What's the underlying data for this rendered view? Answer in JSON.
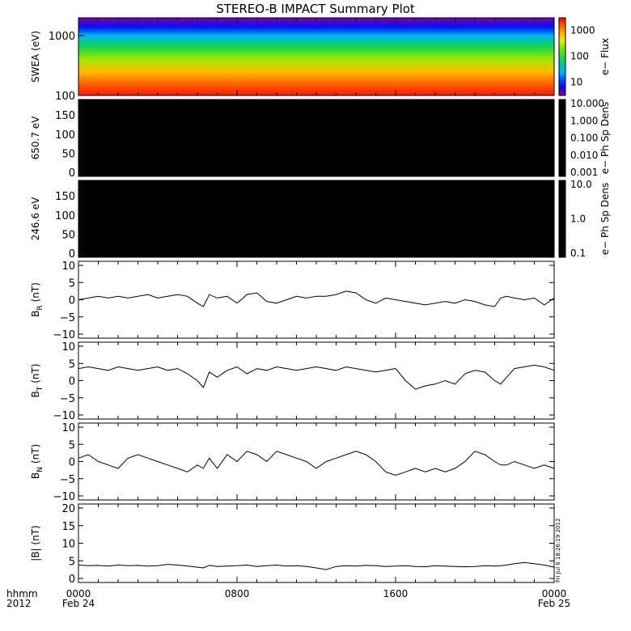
{
  "title": "STEREO-B IMPACT Summary Plot",
  "stamp": "Fri Jul  6 18:26:19 2012",
  "x_axis": {
    "corner_top": "hhmm",
    "corner_bottom": "2012",
    "ticks": [
      {
        "hhmm": "0000",
        "date": "Feb 24",
        "hours": 0
      },
      {
        "hhmm": "0800",
        "date": "",
        "hours": 8
      },
      {
        "hhmm": "1600",
        "date": "",
        "hours": 16
      },
      {
        "hhmm": "0000",
        "date": "Feb 25",
        "hours": 24
      }
    ]
  },
  "colors": {
    "trace": "#000000",
    "pad": "#000000"
  },
  "chart_data": [
    {
      "type": "heatmap",
      "panel": "swea",
      "ylabel": "SWEA (eV)",
      "yscale": "log",
      "ylim": [
        100,
        2000
      ],
      "yticks": [
        "1000",
        "100"
      ],
      "colorbar_label": "e− Flux",
      "colorbar_ticks": [
        "1000",
        "100",
        "10"
      ],
      "colorbar_range": [
        3,
        3000
      ],
      "colorbar_scale": "log",
      "colormap": "rainbow",
      "profile": [
        {
          "energy_eV": 100,
          "flux": 2500
        },
        {
          "energy_eV": 150,
          "flux": 1500
        },
        {
          "energy_eV": 250,
          "flux": 700
        },
        {
          "energy_eV": 400,
          "flux": 250
        },
        {
          "energy_eV": 650,
          "flux": 80
        },
        {
          "energy_eV": 1000,
          "flux": 25
        },
        {
          "energy_eV": 1400,
          "flux": 8
        },
        {
          "energy_eV": 2000,
          "flux": 3
        }
      ]
    },
    {
      "type": "heatmap",
      "panel": "pad650",
      "ylabel": "650.7 eV",
      "ylim": [
        0,
        180
      ],
      "yticks": [
        "150",
        "100",
        "50",
        "0"
      ],
      "colorbar_label": "e− Ph Sp Dens",
      "colorbar_ticks": [
        "10.000",
        "1.000",
        "0.100",
        "0.010",
        "0.001"
      ],
      "fill": "black"
    },
    {
      "type": "heatmap",
      "panel": "pad246",
      "ylabel": "246.6 eV",
      "ylim": [
        0,
        180
      ],
      "yticks": [
        "150",
        "100",
        "50",
        "0"
      ],
      "colorbar_label": "e− Ph Sp Dens",
      "colorbar_ticks": [
        "10.0",
        "1.0",
        "0.1"
      ],
      "fill": "black"
    },
    {
      "type": "line",
      "panel": "br",
      "ylabel_base": "B",
      "ylabel_sub": "R",
      "ylabel_unit": "(nT)",
      "ylim": [
        -10,
        10
      ],
      "yticks": [
        "10",
        "5",
        "0",
        "−5",
        "−10"
      ],
      "x": [
        0,
        0.5,
        1,
        1.5,
        2,
        2.5,
        3,
        3.5,
        4,
        4.5,
        5,
        5.5,
        6,
        6.3,
        6.6,
        7,
        7.5,
        8,
        8.5,
        9,
        9.5,
        10,
        10.5,
        11,
        11.5,
        12,
        12.5,
        13,
        13.5,
        14,
        14.5,
        15,
        15.5,
        16,
        16.5,
        17,
        17.5,
        18,
        18.5,
        19,
        19.5,
        20,
        20.5,
        21,
        21.3,
        21.6,
        22,
        22.5,
        23,
        23.5,
        24
      ],
      "y": [
        0,
        0.5,
        1,
        0.5,
        1,
        0.5,
        1,
        1.5,
        0.5,
        1,
        1.5,
        1,
        -1,
        -2,
        1.5,
        0.5,
        1,
        -1,
        1.5,
        2,
        -0.5,
        -1,
        0,
        1,
        0.5,
        1,
        1,
        1.5,
        2.5,
        2,
        0,
        -1,
        0.5,
        0,
        -0.5,
        -1,
        -1.5,
        -1,
        -0.5,
        -1,
        0,
        -0.5,
        -1.5,
        -2,
        0.5,
        1,
        0.5,
        0,
        0.5,
        -1.5,
        0.5
      ]
    },
    {
      "type": "line",
      "panel": "bt",
      "ylabel_base": "B",
      "ylabel_sub": "T",
      "ylabel_unit": "(nT)",
      "ylim": [
        -10,
        10
      ],
      "yticks": [
        "10",
        "5",
        "0",
        "−5",
        "−10"
      ],
      "x": [
        0,
        0.5,
        1,
        1.5,
        2,
        2.5,
        3,
        3.5,
        4,
        4.5,
        5,
        5.5,
        6,
        6.3,
        6.6,
        7,
        7.5,
        8,
        8.5,
        9,
        9.5,
        10,
        10.5,
        11,
        11.5,
        12,
        12.5,
        13,
        13.5,
        14,
        14.5,
        15,
        15.5,
        16,
        16.5,
        17,
        17.5,
        18,
        18.5,
        19,
        19.5,
        20,
        20.5,
        21,
        21.3,
        21.6,
        22,
        22.5,
        23,
        23.5,
        24
      ],
      "y": [
        3.5,
        4,
        3.5,
        3,
        4,
        3.5,
        3,
        3.5,
        4,
        3,
        3.5,
        2,
        0,
        -2,
        2.5,
        1,
        3,
        4,
        2,
        3.5,
        3,
        4,
        3.5,
        3,
        3.5,
        4,
        3.5,
        3,
        4,
        3.5,
        3,
        2.5,
        3,
        3.5,
        0,
        -2.5,
        -1.5,
        -1,
        0,
        -1,
        2,
        3,
        2.5,
        0,
        -1,
        1,
        3.5,
        4,
        4.5,
        4,
        3
      ]
    },
    {
      "type": "line",
      "panel": "bn",
      "ylabel_base": "B",
      "ylabel_sub": "N",
      "ylabel_unit": "(nT)",
      "ylim": [
        -10,
        10
      ],
      "yticks": [
        "10",
        "5",
        "0",
        "−5",
        "−10"
      ],
      "x": [
        0,
        0.5,
        1,
        1.5,
        2,
        2.5,
        3,
        3.5,
        4,
        4.5,
        5,
        5.5,
        6,
        6.3,
        6.6,
        7,
        7.5,
        8,
        8.5,
        9,
        9.5,
        10,
        10.5,
        11,
        11.5,
        12,
        12.5,
        13,
        13.5,
        14,
        14.5,
        15,
        15.5,
        16,
        16.5,
        17,
        17.5,
        18,
        18.5,
        19,
        19.5,
        20,
        20.5,
        21,
        21.3,
        21.6,
        22,
        22.5,
        23,
        23.5,
        24
      ],
      "y": [
        1,
        2,
        0,
        -1,
        -2,
        1,
        2,
        1,
        0,
        -1,
        -2,
        -3,
        -1,
        -2,
        1,
        -2,
        2,
        0,
        3,
        2,
        0,
        3,
        2,
        1,
        0,
        -2,
        0,
        1,
        2,
        3,
        2,
        0,
        -3,
        -4,
        -3,
        -2,
        -3,
        -2,
        -3,
        -2,
        0,
        3,
        2,
        0,
        -1,
        -1,
        0,
        -1,
        -2,
        -1,
        -2
      ]
    },
    {
      "type": "line",
      "panel": "bmag",
      "ylabel": "|B| (nT)",
      "ylim": [
        0,
        20
      ],
      "yticks": [
        "20",
        "15",
        "10",
        "5",
        "0"
      ],
      "x": [
        0,
        0.5,
        1,
        1.5,
        2,
        2.5,
        3,
        3.5,
        4,
        4.5,
        5,
        5.5,
        6,
        6.3,
        6.6,
        7,
        7.5,
        8,
        8.5,
        9,
        9.5,
        10,
        10.5,
        11,
        11.5,
        12,
        12.5,
        13,
        13.5,
        14,
        14.5,
        15,
        15.5,
        16,
        16.5,
        17,
        17.5,
        18,
        18.5,
        19,
        19.5,
        20,
        20.5,
        21,
        21.3,
        21.6,
        22,
        22.5,
        23,
        23.5,
        24
      ],
      "y": [
        3.8,
        3.6,
        3.7,
        3.5,
        3.8,
        3.6,
        3.7,
        3.5,
        3.6,
        4.0,
        3.8,
        3.5,
        3.2,
        3.0,
        3.7,
        3.4,
        3.5,
        3.6,
        3.8,
        3.4,
        3.6,
        3.8,
        3.5,
        3.6,
        3.4,
        3.0,
        2.5,
        3.4,
        3.6,
        3.5,
        3.7,
        3.6,
        3.4,
        3.5,
        3.6,
        3.4,
        3.3,
        3.6,
        3.5,
        3.4,
        3.3,
        3.4,
        3.6,
        3.5,
        3.6,
        3.8,
        4.2,
        4.5,
        4.2,
        3.8,
        3.2
      ]
    }
  ]
}
